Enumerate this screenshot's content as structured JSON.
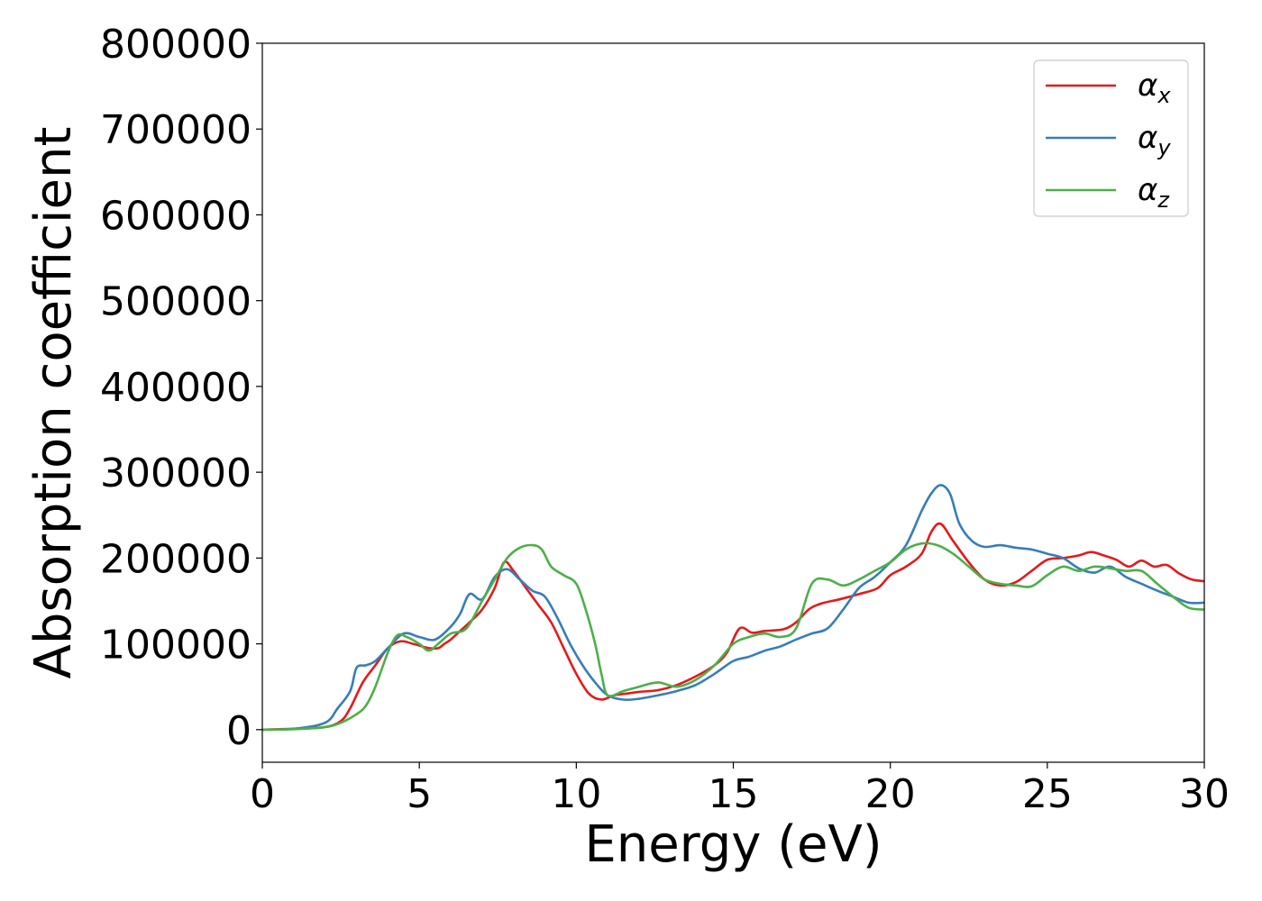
{
  "chart_data": {
    "type": "line",
    "title": "",
    "xlabel": "Energy (eV)",
    "ylabel": "Absorption coefficient",
    "xlim": [
      0,
      30
    ],
    "ylim": [
      -38000,
      800000
    ],
    "xticks": [
      0,
      5,
      10,
      15,
      20,
      25,
      30
    ],
    "yticks": [
      0,
      100000,
      200000,
      300000,
      400000,
      500000,
      600000,
      700000,
      800000
    ],
    "xtick_labels": [
      "0",
      "5",
      "10",
      "15",
      "20",
      "25",
      "30"
    ],
    "ytick_labels": [
      "0",
      "100000",
      "200000",
      "300000",
      "400000",
      "500000",
      "600000",
      "700000",
      "800000"
    ],
    "grid": false,
    "legend_position": "top-right",
    "series": [
      {
        "name": "α",
        "sub": "x",
        "color": "#e41a1c",
        "x": [
          0,
          1,
          2,
          2.5,
          2.8,
          3.2,
          3.6,
          4.0,
          4.4,
          4.8,
          5.0,
          5.3,
          5.6,
          5.8,
          6.0,
          6.3,
          6.6,
          7.0,
          7.4,
          7.7,
          8.0,
          8.4,
          8.8,
          9.2,
          9.6,
          10.0,
          10.4,
          10.8,
          11.2,
          11.6,
          12.0,
          12.6,
          13.2,
          13.8,
          14.4,
          14.8,
          15.2,
          15.6,
          16.0,
          16.6,
          17.0,
          17.4,
          17.8,
          18.4,
          19.0,
          19.6,
          20.0,
          20.5,
          21.0,
          21.3,
          21.6,
          22.0,
          22.5,
          23.0,
          23.5,
          24.0,
          24.5,
          25.0,
          25.5,
          26.0,
          26.4,
          26.8,
          27.2,
          27.6,
          28.0,
          28.4,
          28.8,
          29.2,
          29.6,
          30.0
        ],
        "values": [
          0,
          1000,
          3000,
          10000,
          25000,
          55000,
          75000,
          95000,
          103000,
          100000,
          98000,
          95000,
          95000,
          100000,
          105000,
          115000,
          125000,
          140000,
          165000,
          195000,
          185000,
          165000,
          145000,
          125000,
          95000,
          65000,
          42000,
          35000,
          40000,
          42000,
          44000,
          46000,
          52000,
          62000,
          75000,
          90000,
          118000,
          113000,
          115000,
          117000,
          125000,
          140000,
          147000,
          152000,
          158000,
          165000,
          180000,
          190000,
          205000,
          230000,
          240000,
          220000,
          195000,
          175000,
          168000,
          172000,
          185000,
          198000,
          200000,
          203000,
          207000,
          203000,
          198000,
          190000,
          197000,
          190000,
          192000,
          182000,
          175000,
          173000
        ]
      },
      {
        "name": "α",
        "sub": "y",
        "color": "#377eb8",
        "x": [
          0,
          1,
          2,
          2.4,
          2.8,
          3.0,
          3.3,
          3.6,
          4.0,
          4.5,
          5.0,
          5.5,
          6.0,
          6.3,
          6.6,
          7.0,
          7.4,
          7.8,
          8.2,
          8.6,
          9.0,
          9.4,
          9.8,
          10.2,
          10.6,
          11.0,
          11.5,
          12.0,
          12.6,
          13.2,
          13.8,
          14.4,
          15.0,
          15.5,
          16.0,
          16.5,
          17.0,
          17.5,
          18.0,
          18.5,
          19.0,
          19.5,
          20.0,
          20.5,
          21.0,
          21.3,
          21.6,
          21.9,
          22.2,
          22.6,
          23.0,
          23.5,
          24.0,
          24.5,
          25.0,
          25.5,
          26.0,
          26.5,
          27.0,
          27.5,
          28.0,
          28.5,
          29.0,
          29.5,
          30.0
        ],
        "values": [
          0,
          1000,
          8000,
          25000,
          45000,
          72000,
          75000,
          80000,
          95000,
          112000,
          108000,
          105000,
          120000,
          135000,
          158000,
          152000,
          178000,
          187000,
          175000,
          162000,
          155000,
          130000,
          100000,
          75000,
          55000,
          40000,
          35000,
          36000,
          40000,
          45000,
          52000,
          65000,
          80000,
          85000,
          92000,
          97000,
          105000,
          112000,
          118000,
          140000,
          165000,
          178000,
          195000,
          215000,
          255000,
          275000,
          285000,
          275000,
          240000,
          220000,
          213000,
          215000,
          212000,
          210000,
          205000,
          200000,
          188000,
          183000,
          190000,
          178000,
          170000,
          162000,
          155000,
          148000,
          148000
        ]
      },
      {
        "name": "α",
        "sub": "z",
        "color": "#4daf4a",
        "x": [
          0,
          1,
          2,
          2.5,
          3.0,
          3.3,
          3.6,
          4.0,
          4.3,
          4.6,
          5.0,
          5.3,
          5.6,
          6.0,
          6.5,
          7.0,
          7.4,
          7.8,
          8.2,
          8.6,
          8.9,
          9.2,
          9.6,
          10.0,
          10.3,
          10.6,
          10.8,
          11.0,
          11.5,
          12.0,
          12.6,
          13.2,
          13.8,
          14.4,
          15.0,
          15.5,
          16.0,
          16.5,
          17.0,
          17.5,
          18.0,
          18.5,
          19.0,
          19.5,
          20.0,
          20.5,
          21.0,
          21.5,
          22.0,
          22.5,
          23.0,
          23.5,
          24.0,
          24.5,
          25.0,
          25.5,
          26.0,
          26.5,
          27.0,
          27.5,
          28.0,
          28.5,
          29.0,
          29.5,
          30.0
        ],
        "values": [
          0,
          500,
          3000,
          8000,
          18000,
          28000,
          50000,
          90000,
          110000,
          108000,
          100000,
          92000,
          100000,
          112000,
          118000,
          150000,
          175000,
          200000,
          212000,
          215000,
          210000,
          190000,
          180000,
          170000,
          140000,
          100000,
          65000,
          40000,
          45000,
          50000,
          55000,
          50000,
          58000,
          75000,
          100000,
          108000,
          112000,
          108000,
          118000,
          170000,
          175000,
          168000,
          175000,
          185000,
          195000,
          210000,
          217000,
          215000,
          205000,
          190000,
          175000,
          170000,
          168000,
          167000,
          180000,
          190000,
          185000,
          190000,
          188000,
          185000,
          185000,
          170000,
          155000,
          142000,
          140000
        ]
      }
    ]
  }
}
